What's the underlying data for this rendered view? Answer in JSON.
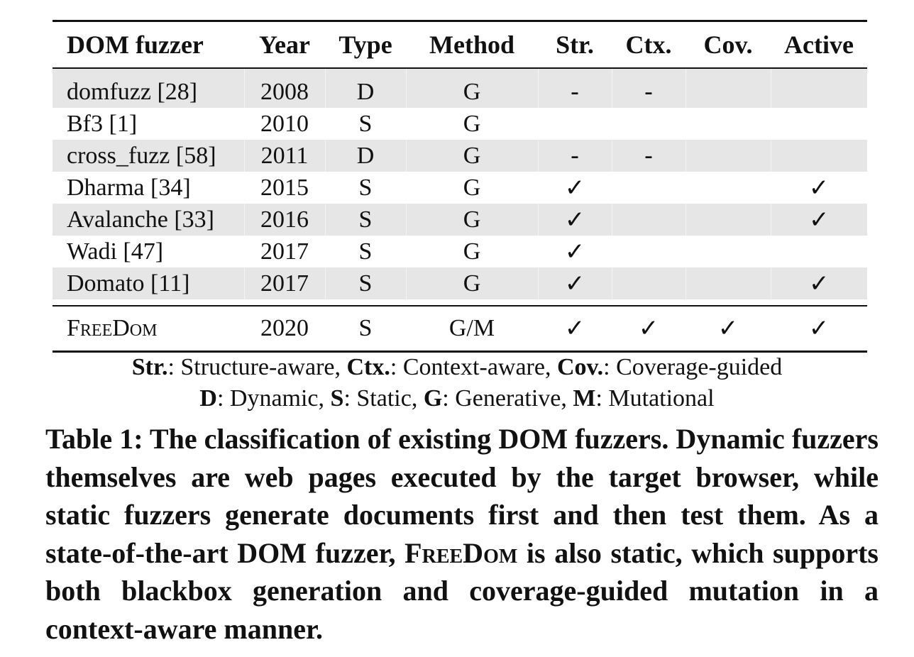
{
  "table": {
    "headers": [
      "DOM fuzzer",
      "Year",
      "Type",
      "Method",
      "Str.",
      "Ctx.",
      "Cov.",
      "Active"
    ],
    "rows": [
      {
        "name": "domfuzz [28]",
        "year": "2008",
        "type": "D",
        "method": "G",
        "str": "-",
        "ctx": "-",
        "cov": "",
        "active": ""
      },
      {
        "name": "Bf3 [1]",
        "year": "2010",
        "type": "S",
        "method": "G",
        "str": "",
        "ctx": "",
        "cov": "",
        "active": ""
      },
      {
        "name": "cross_fuzz [58]",
        "year": "2011",
        "type": "D",
        "method": "G",
        "str": "-",
        "ctx": "-",
        "cov": "",
        "active": ""
      },
      {
        "name": "Dharma [34]",
        "year": "2015",
        "type": "S",
        "method": "G",
        "str": "✓",
        "ctx": "",
        "cov": "",
        "active": "✓"
      },
      {
        "name": "Avalanche [33]",
        "year": "2016",
        "type": "S",
        "method": "G",
        "str": "✓",
        "ctx": "",
        "cov": "",
        "active": "✓"
      },
      {
        "name": "Wadi [47]",
        "year": "2017",
        "type": "S",
        "method": "G",
        "str": "✓",
        "ctx": "",
        "cov": "",
        "active": ""
      },
      {
        "name": "Domato [11]",
        "year": "2017",
        "type": "S",
        "method": "G",
        "str": "✓",
        "ctx": "",
        "cov": "",
        "active": "✓"
      }
    ],
    "freedom": {
      "name": "FreeDom",
      "year": "2020",
      "type": "S",
      "method": "G/M",
      "str": "✓",
      "ctx": "✓",
      "cov": "✓",
      "active": "✓"
    }
  },
  "legend": {
    "line1": [
      {
        "key": "Str.",
        "desc": ": Structure-aware, "
      },
      {
        "key": "Ctx.",
        "desc": ": Context-aware, "
      },
      {
        "key": "Cov.",
        "desc": ": Coverage-guided"
      }
    ],
    "line2": [
      {
        "key": "D",
        "desc": ": Dynamic, "
      },
      {
        "key": "S",
        "desc": ": Static, "
      },
      {
        "key": "G",
        "desc": ": Generative, "
      },
      {
        "key": "M",
        "desc": ": Mutational"
      }
    ]
  },
  "caption": {
    "part1": "Table 1: The classification of existing DOM fuzzers. Dynamic fuzzers themselves are web pages executed by the target browser, while static fuzzers generate documents first and then test them. As a state-of-the-art DOM fuzzer, ",
    "name": "FreeDom",
    "part2": " is also static, which supports both blackbox generation and coverage-guided mutation in a context-aware manner."
  }
}
